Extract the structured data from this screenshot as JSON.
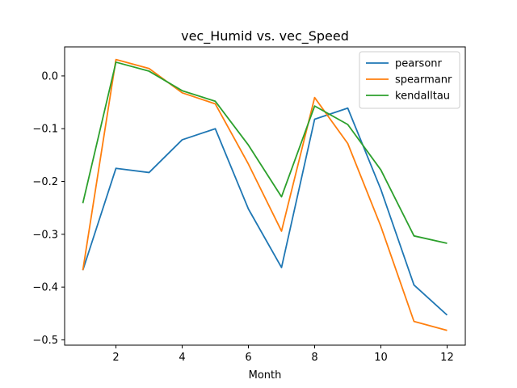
{
  "chart_data": {
    "type": "line",
    "title": "vec_Humid vs. vec_Speed",
    "xlabel": "Month",
    "ylabel": "",
    "x": [
      1,
      2,
      3,
      4,
      5,
      6,
      7,
      8,
      9,
      10,
      11,
      12
    ],
    "xlim": [
      0.45,
      12.55
    ],
    "ylim": [
      -0.51,
      0.055
    ],
    "xticks": [
      2,
      4,
      6,
      8,
      10,
      12
    ],
    "yticks": [
      0.0,
      -0.1,
      -0.2,
      -0.3,
      -0.4,
      -0.5
    ],
    "ytick_labels": [
      "0.0",
      "−0.1",
      "−0.2",
      "−0.3",
      "−0.4",
      "−0.5"
    ],
    "grid": false,
    "legend_position": "top-right",
    "series": [
      {
        "name": "pearsonr",
        "color": "#1f77b4",
        "values": [
          -0.368,
          -0.175,
          -0.183,
          -0.121,
          -0.1,
          -0.252,
          -0.363,
          -0.082,
          -0.061,
          -0.215,
          -0.396,
          -0.453
        ]
      },
      {
        "name": "spearmanr",
        "color": "#ff7f0e",
        "values": [
          -0.368,
          0.031,
          0.014,
          -0.032,
          -0.053,
          -0.167,
          -0.294,
          -0.041,
          -0.128,
          -0.285,
          -0.465,
          -0.482
        ]
      },
      {
        "name": "kendalltau",
        "color": "#2ca02c",
        "values": [
          -0.241,
          0.026,
          0.009,
          -0.028,
          -0.048,
          -0.131,
          -0.229,
          -0.057,
          -0.092,
          -0.178,
          -0.303,
          -0.317
        ]
      }
    ]
  }
}
